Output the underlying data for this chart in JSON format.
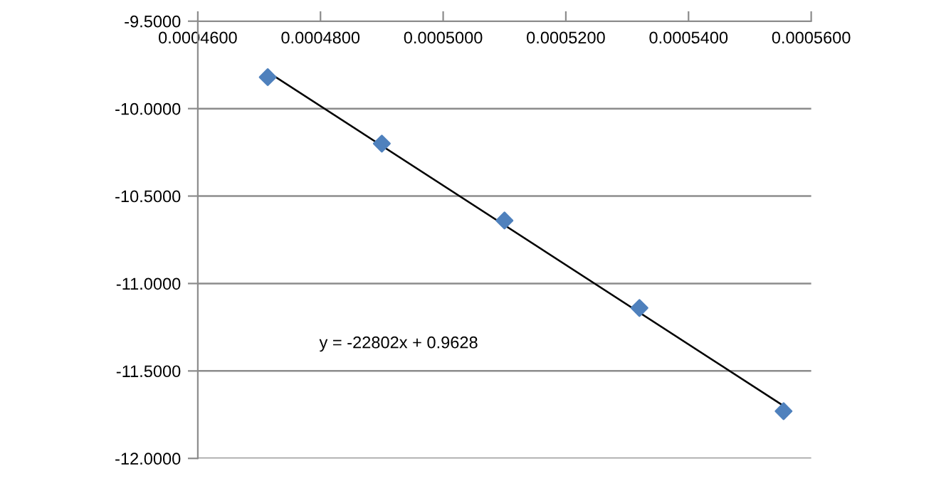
{
  "chart_data": {
    "type": "scatter",
    "grid": "y",
    "annotations": [
      "y = -22802x + 0.9628"
    ],
    "series": [
      {
        "color": "#4f81bd",
        "marker": "diamond",
        "x": [
          0.0004714,
          0.00049,
          0.00051,
          0.000532,
          0.0005555
        ],
        "values": [
          -9.82,
          -10.2,
          -10.64,
          -11.14,
          -11.73
        ]
      },
      {
        "type": "line",
        "color": "#000000",
        "x": [
          0.0004714,
          0.0005555
        ],
        "values": [
          -9.79,
          -11.7
        ]
      }
    ],
    "xlim": [
      0.00046,
      0.00056
    ],
    "ylim": [
      -12,
      -9.5
    ],
    "xticks": [
      {
        "value": 0.00046,
        "label": "0.0004600"
      },
      {
        "value": 0.00048,
        "label": "0.0004800"
      },
      {
        "value": 0.0005,
        "label": "0.0005000"
      },
      {
        "value": 0.00052,
        "label": "0.0005200"
      },
      {
        "value": 0.00054,
        "label": "0.0005400"
      },
      {
        "value": 0.00056,
        "label": "0.0005600"
      }
    ],
    "yticks": [
      {
        "value": -12,
        "label": "-12.0000"
      },
      {
        "value": -11.5,
        "label": "-11.5000"
      },
      {
        "value": -11,
        "label": "-11.0000"
      },
      {
        "value": -10.5,
        "label": "-10.5000"
      },
      {
        "value": -10,
        "label": "-10.0000"
      },
      {
        "value": -9.5,
        "label": "-9.5000"
      }
    ]
  }
}
